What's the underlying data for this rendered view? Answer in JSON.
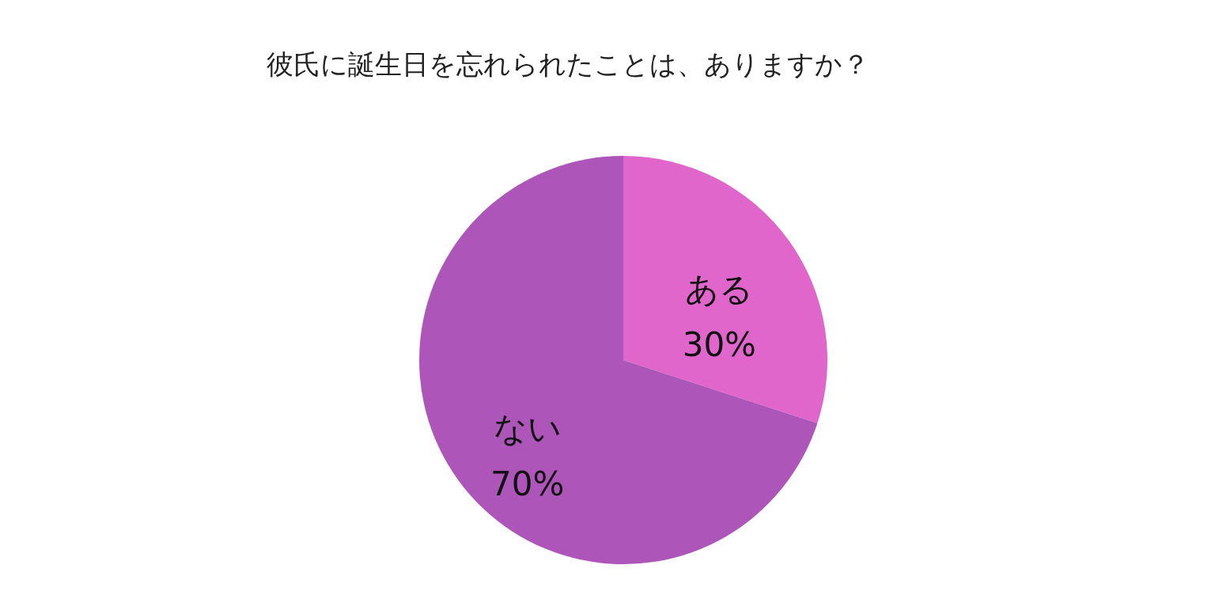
{
  "chart_data": {
    "type": "pie",
    "title": "彼氏に誕生日を忘れられたことは、ありますか？",
    "categories": [
      "ある",
      "ない"
    ],
    "values": [
      30,
      70
    ],
    "value_labels": [
      "30%",
      "70%"
    ],
    "colors": [
      "#e066cc",
      "#ad55b9"
    ],
    "legend": false
  }
}
